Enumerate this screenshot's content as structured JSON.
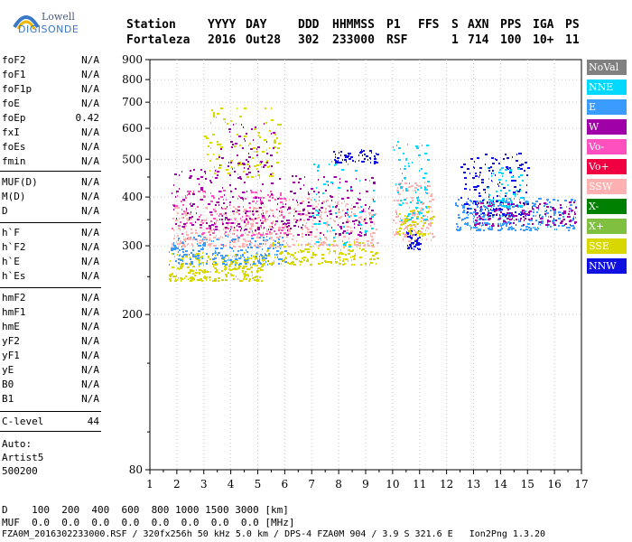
{
  "logo": {
    "line1": "Lowell",
    "line2": "DIGISONDE"
  },
  "header": {
    "row1": [
      "Station",
      "YYYY",
      "DAY",
      "DDD",
      "HHMMSS",
      "P1",
      "FFS",
      "S",
      "AXN",
      "PPS",
      "IGA",
      "PS"
    ],
    "row2": [
      "Fortaleza",
      "2016",
      "Out28",
      "302",
      "233000",
      "RSF",
      "",
      "1",
      "714",
      "100",
      "10+",
      "11"
    ]
  },
  "params_group1": [
    {
      "name": "foF2",
      "value": "N/A"
    },
    {
      "name": "foF1",
      "value": "N/A"
    },
    {
      "name": "foF1p",
      "value": "N/A"
    },
    {
      "name": "foE",
      "value": "N/A"
    },
    {
      "name": "foEp",
      "value": "0.42"
    },
    {
      "name": "fxI",
      "value": "N/A"
    },
    {
      "name": "foEs",
      "value": "N/A"
    },
    {
      "name": "fmin",
      "value": "N/A"
    }
  ],
  "params_group2": [
    {
      "name": "MUF(D)",
      "value": "N/A"
    },
    {
      "name": "M(D)",
      "value": "N/A"
    },
    {
      "name": "D",
      "value": "N/A"
    }
  ],
  "params_group3": [
    {
      "name": "h`F",
      "value": "N/A"
    },
    {
      "name": "h`F2",
      "value": "N/A"
    },
    {
      "name": "h`E",
      "value": "N/A"
    },
    {
      "name": "h`Es",
      "value": "N/A"
    }
  ],
  "params_group4": [
    {
      "name": "hmF2",
      "value": "N/A"
    },
    {
      "name": "hmF1",
      "value": "N/A"
    },
    {
      "name": "hmE",
      "value": "N/A"
    },
    {
      "name": "yF2",
      "value": "N/A"
    },
    {
      "name": "yF1",
      "value": "N/A"
    },
    {
      "name": "yE",
      "value": "N/A"
    },
    {
      "name": "B0",
      "value": "N/A"
    },
    {
      "name": "B1",
      "value": "N/A"
    }
  ],
  "clevel": {
    "name": "C-level",
    "value": "44"
  },
  "auto": {
    "line1": "Auto:",
    "line2": "Artist5",
    "line3": "500200"
  },
  "footer": {
    "d_row": "D    100  200  400  600  800 1000 1500 3000 [km]",
    "muf_row": "MUF  0.0  0.0  0.0  0.0  0.0  0.0  0.0  0.0 [MHz]",
    "file_row": "FZA0M_2016302233000.RSF / 320fx256h 50 kHz 5.0 km / DPS-4 FZA0M 904 / 3.9 S 321.6 E   Ion2Png 1.3.20"
  },
  "legend": [
    {
      "label": "NoVal",
      "color": "#808080"
    },
    {
      "label": "NNE",
      "color": "#00d8ff"
    },
    {
      "label": "E",
      "color": "#3c9bff"
    },
    {
      "label": "W",
      "color": "#a000a8"
    },
    {
      "label": "Vo-",
      "color": "#ff50c0"
    },
    {
      "label": "Vo+",
      "color": "#f00040"
    },
    {
      "label": "SSW",
      "color": "#ffb0b0"
    },
    {
      "label": "X-",
      "color": "#008000"
    },
    {
      "label": "X+",
      "color": "#80c040"
    },
    {
      "label": "SSE",
      "color": "#d8d800"
    },
    {
      "label": "NNW",
      "color": "#1010e0"
    }
  ],
  "chart_data": {
    "type": "scatter",
    "title": "",
    "xlabel": "",
    "ylabel": "",
    "xlim": [
      1,
      17
    ],
    "ylim": [
      80,
      900
    ],
    "x_ticks": [
      "1",
      "2",
      "3",
      "4",
      "5",
      "6",
      "7",
      "8",
      "9",
      "10",
      "11",
      "12",
      "13",
      "14",
      "15",
      "16",
      "17"
    ],
    "y_ticks": [
      "80",
      "200",
      "300",
      "400",
      "500",
      "600",
      "700",
      "800",
      "900"
    ],
    "y_scale": "log",
    "grid": true,
    "legend_position": "right",
    "clusters": [
      {
        "name": "SSE",
        "x_range": [
          1.7,
          5.2
        ],
        "y_range": [
          245,
          290
        ],
        "density": 260
      },
      {
        "name": "E",
        "x_range": [
          1.7,
          6.0
        ],
        "y_range": [
          270,
          320
        ],
        "density": 220
      },
      {
        "name": "SSW",
        "x_range": [
          1.8,
          6.0
        ],
        "y_range": [
          300,
          380
        ],
        "density": 260
      },
      {
        "name": "Vo-",
        "x_range": [
          1.8,
          6.0
        ],
        "y_range": [
          320,
          420
        ],
        "density": 180
      },
      {
        "name": "W",
        "x_range": [
          1.8,
          6.0
        ],
        "y_range": [
          330,
          480
        ],
        "density": 160
      },
      {
        "name": "SSE",
        "x_range": [
          3.0,
          5.8
        ],
        "y_range": [
          450,
          680
        ],
        "density": 110
      },
      {
        "name": "W",
        "x_range": [
          3.5,
          5.6
        ],
        "y_range": [
          480,
          620
        ],
        "density": 50
      },
      {
        "name": "SSE",
        "x_range": [
          5.3,
          9.4
        ],
        "y_range": [
          270,
          310
        ],
        "density": 160
      },
      {
        "name": "SSW",
        "x_range": [
          6.0,
          9.4
        ],
        "y_range": [
          300,
          400
        ],
        "density": 190
      },
      {
        "name": "W",
        "x_range": [
          6.0,
          9.3
        ],
        "y_range": [
          320,
          460
        ],
        "density": 150
      },
      {
        "name": "NNW",
        "x_range": [
          7.8,
          9.4
        ],
        "y_range": [
          490,
          530
        ],
        "density": 60
      },
      {
        "name": "NNE",
        "x_range": [
          7.0,
          9.3
        ],
        "y_range": [
          300,
          500
        ],
        "density": 70
      },
      {
        "name": "SSW",
        "x_range": [
          10.0,
          11.5
        ],
        "y_range": [
          310,
          440
        ],
        "density": 130
      },
      {
        "name": "NNE",
        "x_range": [
          10.0,
          11.3
        ],
        "y_range": [
          350,
          560
        ],
        "density": 90
      },
      {
        "name": "NNW",
        "x_range": [
          10.5,
          11.0
        ],
        "y_range": [
          295,
          330
        ],
        "density": 40
      },
      {
        "name": "SSE",
        "x_range": [
          10.1,
          11.5
        ],
        "y_range": [
          320,
          380
        ],
        "density": 70
      },
      {
        "name": "E",
        "x_range": [
          12.3,
          16.8
        ],
        "y_range": [
          330,
          400
        ],
        "density": 300
      },
      {
        "name": "NNW",
        "x_range": [
          12.5,
          15.0
        ],
        "y_range": [
          360,
          520
        ],
        "density": 150
      },
      {
        "name": "W",
        "x_range": [
          13.0,
          16.8
        ],
        "y_range": [
          340,
          390
        ],
        "density": 140
      },
      {
        "name": "NNE",
        "x_range": [
          13.5,
          14.8
        ],
        "y_range": [
          380,
          480
        ],
        "density": 70
      }
    ]
  }
}
